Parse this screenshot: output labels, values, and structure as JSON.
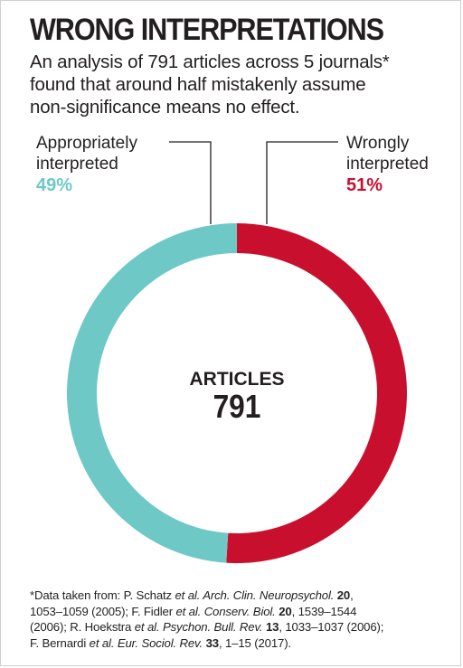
{
  "header": {
    "title": "WRONG INTERPRETATIONS",
    "subtitle_lines": [
      "An analysis of 791 articles across 5 journals*",
      "found that around half mistakenly assume",
      "non-significance means no effect."
    ]
  },
  "chart_data": {
    "type": "pie",
    "donut": true,
    "title": "WRONG INTERPRETATIONS",
    "center_label": "ARTICLES",
    "center_value": "791",
    "slices": [
      {
        "name": "Wrongly interpreted",
        "label_lines": [
          "Wrongly",
          "interpreted"
        ],
        "value": 51,
        "display": "51%",
        "color": "#c8102e"
      },
      {
        "name": "Appropriately interpreted",
        "label_lines": [
          "Appropriately",
          "interpreted"
        ],
        "value": 49,
        "display": "49%",
        "color": "#6ec8c6"
      }
    ],
    "start": "top",
    "direction": "clockwise",
    "legend_placement": "callouts-top"
  },
  "footnote": {
    "lines": [
      [
        {
          "t": "*Data taken from: P. Schatz "
        },
        {
          "t": "et al. Arch. Clin. Neuropsychol.",
          "s": "i"
        },
        {
          "t": " "
        },
        {
          "t": "20",
          "s": "b"
        },
        {
          "t": ","
        }
      ],
      [
        {
          "t": "1053–1059 (2005); F. Fidler "
        },
        {
          "t": "et al. Conserv. Biol.",
          "s": "i"
        },
        {
          "t": " "
        },
        {
          "t": "20",
          "s": "b"
        },
        {
          "t": ", 1539–1544"
        }
      ],
      [
        {
          "t": "(2006); R. Hoekstra "
        },
        {
          "t": "et al. Psychon. Bull. Rev.",
          "s": "i"
        },
        {
          "t": " "
        },
        {
          "t": "13",
          "s": "b"
        },
        {
          "t": ", 1033–1037 (2006);"
        }
      ],
      [
        {
          "t": "F. Bernardi "
        },
        {
          "t": "et al. Eur. Sociol. Rev.",
          "s": "i"
        },
        {
          "t": " "
        },
        {
          "t": "33",
          "s": "b"
        },
        {
          "t": ", 1–15 (2017)."
        }
      ]
    ]
  }
}
